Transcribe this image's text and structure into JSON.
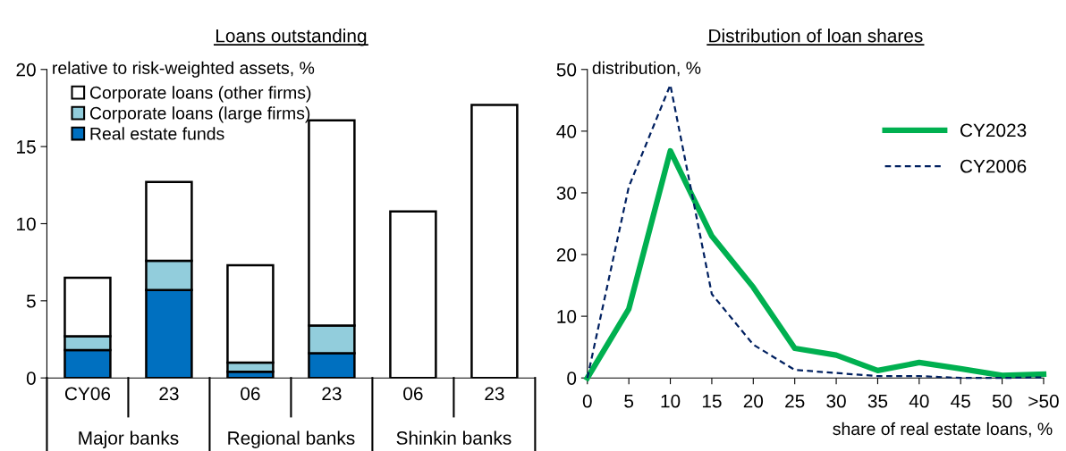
{
  "chart_data": [
    {
      "type": "bar",
      "title": "Loans outstanding",
      "ylabel": "relative to risk-weighted assets, %",
      "stacked": true,
      "categories": [
        "CY06",
        "23",
        "06",
        "23",
        "06",
        "23"
      ],
      "series": [
        {
          "name": "Real estate funds",
          "color": "#0070c0",
          "values": [
            1.8,
            5.7,
            0.4,
            1.6,
            0,
            0
          ]
        },
        {
          "name": "Corporate loans (large firms)",
          "color": "#92cddc",
          "values": [
            0.9,
            1.9,
            0.6,
            1.8,
            0,
            0
          ]
        },
        {
          "name": "Corporate loans (other firms)",
          "color": "#ffffff",
          "values": [
            3.8,
            5.1,
            6.3,
            13.3,
            10.8,
            17.7
          ]
        }
      ],
      "annotations": [
        "Major banks",
        "Regional banks",
        "Shinkin banks"
      ],
      "ylim": [
        0,
        20
      ],
      "yticks": [
        0,
        5,
        10,
        15,
        20
      ],
      "grid": false,
      "legend": "top left"
    },
    {
      "type": "line",
      "title": "Distribution of loan shares",
      "ylabel": "distribution, %",
      "xlabel": "share of real estate loans, %",
      "categories": [
        "0",
        "5",
        "10",
        "15",
        "20",
        "25",
        "30",
        "35",
        "40",
        "45",
        "50",
        ">50"
      ],
      "series": [
        {
          "name": "CY2023",
          "color": "#00b050",
          "line_style": "solid",
          "values": [
            0,
            11.2,
            36.8,
            23.0,
            14.7,
            4.8,
            3.7,
            1.2,
            2.5,
            1.5,
            0.4,
            0.6
          ]
        },
        {
          "name": "CY2006",
          "color": "#002060",
          "line_style": "dashed",
          "values": [
            0,
            31.0,
            47.5,
            13.6,
            5.4,
            1.3,
            0.8,
            0.3,
            0.3,
            0,
            0,
            0.1
          ]
        }
      ],
      "ylim": [
        0,
        50
      ],
      "yticks": [
        0,
        10,
        20,
        30,
        40,
        50
      ],
      "grid": false,
      "legend": "top right"
    }
  ]
}
